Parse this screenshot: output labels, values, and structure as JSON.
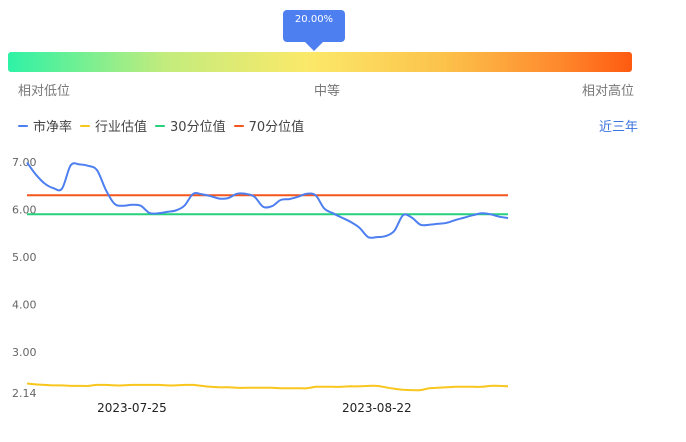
{
  "gauge": {
    "percentile_label": "20.00%",
    "low_label": "相对低位",
    "mid_label": "中等",
    "high_label": "相对高位"
  },
  "period_label": "近三年",
  "chart_data": {
    "type": "line",
    "legend": [
      {
        "name": "市净率",
        "color": "#4d7ff1"
      },
      {
        "name": "行业估值",
        "color": "#f8c61c"
      },
      {
        "name": "30分位值",
        "color": "#27d07b"
      },
      {
        "name": "70分位值",
        "color": "#f4561d"
      }
    ],
    "y_ticks": [
      "7.00",
      "6.00",
      "5.00",
      "4.00",
      "3.00",
      "2.14"
    ],
    "y_tick_values": [
      7.0,
      6.0,
      5.0,
      4.0,
      3.0,
      2.14
    ],
    "ylim": [
      2.14,
      7.0
    ],
    "x_tick_labels": [
      "2023-07-25",
      "2023-08-22"
    ],
    "x_tick_indices": [
      12,
      40
    ],
    "n_points": 56,
    "series": [
      {
        "name": "市净率",
        "color": "#4d7ff1",
        "values": [
          6.99,
          6.74,
          6.55,
          6.45,
          6.44,
          6.93,
          6.95,
          6.92,
          6.83,
          6.42,
          6.12,
          6.08,
          6.1,
          6.08,
          5.93,
          5.92,
          5.95,
          5.98,
          6.08,
          6.33,
          6.32,
          6.28,
          6.23,
          6.24,
          6.33,
          6.33,
          6.27,
          6.06,
          6.07,
          6.2,
          6.22,
          6.27,
          6.33,
          6.3,
          6.02,
          5.92,
          5.83,
          5.74,
          5.62,
          5.42,
          5.42,
          5.44,
          5.55,
          5.88,
          5.83,
          5.68,
          5.68,
          5.7,
          5.72,
          5.78,
          5.83,
          5.88,
          5.92,
          5.9,
          5.85,
          5.82
        ]
      },
      {
        "name": "行业估值",
        "color": "#f8c61c",
        "values": [
          2.34,
          2.32,
          2.31,
          2.3,
          2.3,
          2.29,
          2.29,
          2.29,
          2.31,
          2.31,
          2.3,
          2.3,
          2.31,
          2.31,
          2.31,
          2.31,
          2.3,
          2.3,
          2.31,
          2.31,
          2.29,
          2.27,
          2.26,
          2.26,
          2.25,
          2.25,
          2.25,
          2.25,
          2.25,
          2.24,
          2.24,
          2.24,
          2.24,
          2.27,
          2.27,
          2.27,
          2.27,
          2.28,
          2.28,
          2.29,
          2.29,
          2.26,
          2.23,
          2.21,
          2.2,
          2.2,
          2.24,
          2.25,
          2.26,
          2.27,
          2.27,
          2.27,
          2.27,
          2.29,
          2.29,
          2.28
        ]
      },
      {
        "name": "30分位值",
        "color": "#27d07b",
        "values": [
          5.9
        ]
      },
      {
        "name": "70分位值",
        "color": "#f4561d",
        "values": [
          6.3
        ]
      }
    ]
  }
}
